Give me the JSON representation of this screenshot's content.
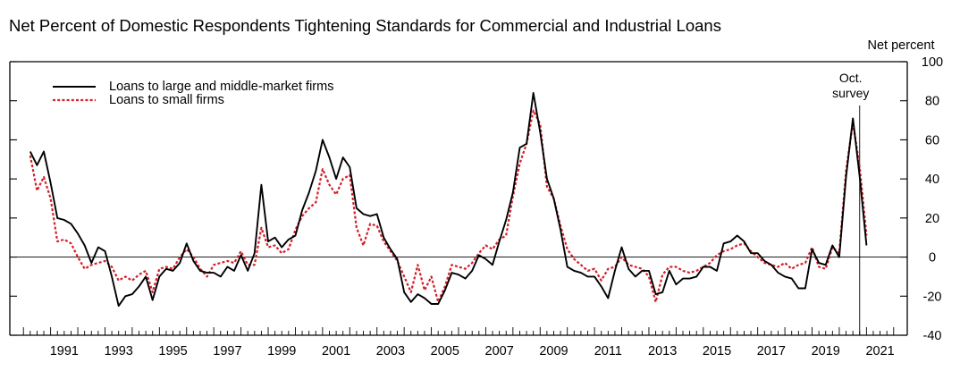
{
  "chart_data": {
    "type": "line",
    "title": "Net Percent of Domestic Respondents Tightening Standards for Commercial and Industrial Loans",
    "ylabel": "Net percent",
    "ylim": [
      -40,
      100
    ],
    "yticks": [
      -40,
      -20,
      0,
      20,
      40,
      60,
      80,
      100
    ],
    "xlim": [
      1989.5,
      2022.5
    ],
    "xticks": [
      1991,
      1993,
      1995,
      1997,
      1999,
      2001,
      2003,
      2005,
      2007,
      2009,
      2011,
      2013,
      2015,
      2017,
      2019,
      2021
    ],
    "xtick_labels": [
      "1991",
      "1993",
      "1995",
      "1997",
      "1999",
      "2001",
      "2003",
      "2005",
      "2007",
      "2009",
      "2011",
      "2013",
      "2015",
      "2017",
      "2019",
      "2021"
    ],
    "legend_position": "top-left",
    "annotation": {
      "text": [
        "Oct.",
        "survey"
      ],
      "x": 2020.75
    },
    "series": [
      {
        "name": "Loans to large and middle-market firms",
        "color": "#000000",
        "style": "solid",
        "points": [
          [
            1990.25,
            54
          ],
          [
            1990.5,
            47
          ],
          [
            1990.75,
            54
          ],
          [
            1991.0,
            38
          ],
          [
            1991.25,
            20
          ],
          [
            1991.5,
            19
          ],
          [
            1991.75,
            17
          ],
          [
            1992.0,
            12
          ],
          [
            1992.25,
            6
          ],
          [
            1992.5,
            -3
          ],
          [
            1992.75,
            5
          ],
          [
            1993.0,
            3
          ],
          [
            1993.25,
            -10
          ],
          [
            1993.5,
            -25
          ],
          [
            1993.75,
            -20
          ],
          [
            1994.0,
            -19
          ],
          [
            1994.25,
            -15
          ],
          [
            1994.5,
            -10
          ],
          [
            1994.75,
            -22
          ],
          [
            1995.0,
            -10
          ],
          [
            1995.25,
            -6
          ],
          [
            1995.5,
            -7
          ],
          [
            1995.75,
            -3
          ],
          [
            1996.0,
            7
          ],
          [
            1996.25,
            -2
          ],
          [
            1996.5,
            -7
          ],
          [
            1996.75,
            -8
          ],
          [
            1997.0,
            -8
          ],
          [
            1997.25,
            -10
          ],
          [
            1997.5,
            -5
          ],
          [
            1997.75,
            -7
          ],
          [
            1998.0,
            1
          ],
          [
            1998.25,
            -7
          ],
          [
            1998.5,
            2
          ],
          [
            1998.75,
            37
          ],
          [
            1999.0,
            8
          ],
          [
            1999.25,
            10
          ],
          [
            1999.5,
            5
          ],
          [
            1999.75,
            9
          ],
          [
            2000.0,
            11
          ],
          [
            2000.25,
            24
          ],
          [
            2000.5,
            33
          ],
          [
            2000.75,
            44
          ],
          [
            2001.0,
            60
          ],
          [
            2001.25,
            51
          ],
          [
            2001.5,
            40
          ],
          [
            2001.75,
            51
          ],
          [
            2002.0,
            46
          ],
          [
            2002.25,
            25
          ],
          [
            2002.5,
            22
          ],
          [
            2002.75,
            21
          ],
          [
            2003.0,
            22
          ],
          [
            2003.25,
            10
          ],
          [
            2003.5,
            4
          ],
          [
            2003.75,
            -1
          ],
          [
            2004.0,
            -18
          ],
          [
            2004.25,
            -23
          ],
          [
            2004.5,
            -19
          ],
          [
            2004.75,
            -21
          ],
          [
            2005.0,
            -24
          ],
          [
            2005.25,
            -24
          ],
          [
            2005.5,
            -17
          ],
          [
            2005.75,
            -8
          ],
          [
            2006.0,
            -9
          ],
          [
            2006.25,
            -11
          ],
          [
            2006.5,
            -7
          ],
          [
            2006.75,
            1
          ],
          [
            2007.0,
            -1
          ],
          [
            2007.25,
            -4
          ],
          [
            2007.5,
            8
          ],
          [
            2007.75,
            19
          ],
          [
            2008.0,
            33
          ],
          [
            2008.25,
            56
          ],
          [
            2008.5,
            58
          ],
          [
            2008.75,
            84
          ],
          [
            2009.0,
            64
          ],
          [
            2009.25,
            40
          ],
          [
            2009.5,
            30
          ],
          [
            2009.75,
            14
          ],
          [
            2010.0,
            -5
          ],
          [
            2010.25,
            -7
          ],
          [
            2010.5,
            -8
          ],
          [
            2010.75,
            -10
          ],
          [
            2011.0,
            -10
          ],
          [
            2011.25,
            -15
          ],
          [
            2011.5,
            -21
          ],
          [
            2011.75,
            -7
          ],
          [
            2012.0,
            5
          ],
          [
            2012.25,
            -6
          ],
          [
            2012.5,
            -10
          ],
          [
            2012.75,
            -7
          ],
          [
            2013.0,
            -7
          ],
          [
            2013.25,
            -19
          ],
          [
            2013.5,
            -18
          ],
          [
            2013.75,
            -7
          ],
          [
            2014.0,
            -14
          ],
          [
            2014.25,
            -11
          ],
          [
            2014.5,
            -11
          ],
          [
            2014.75,
            -10
          ],
          [
            2015.0,
            -5
          ],
          [
            2015.25,
            -5
          ],
          [
            2015.5,
            -7
          ],
          [
            2015.75,
            7
          ],
          [
            2016.0,
            8
          ],
          [
            2016.25,
            11
          ],
          [
            2016.5,
            8
          ],
          [
            2016.75,
            2
          ],
          [
            2017.0,
            2
          ],
          [
            2017.25,
            -2
          ],
          [
            2017.5,
            -4
          ],
          [
            2017.75,
            -8
          ],
          [
            2018.0,
            -10
          ],
          [
            2018.25,
            -11
          ],
          [
            2018.5,
            -16
          ],
          [
            2018.75,
            -16
          ],
          [
            2019.0,
            4
          ],
          [
            2019.25,
            -3
          ],
          [
            2019.5,
            -4
          ],
          [
            2019.75,
            6
          ],
          [
            2020.0,
            0
          ],
          [
            2020.25,
            41
          ],
          [
            2020.5,
            71
          ],
          [
            2020.75,
            41
          ],
          [
            2021.0,
            6
          ]
        ]
      },
      {
        "name": "Loans to small firms",
        "color": "#d3202a",
        "style": "dotted",
        "points": [
          [
            1990.25,
            52
          ],
          [
            1990.5,
            34
          ],
          [
            1990.75,
            41
          ],
          [
            1991.0,
            30
          ],
          [
            1991.25,
            8
          ],
          [
            1991.5,
            9
          ],
          [
            1991.75,
            7
          ],
          [
            1992.0,
            0
          ],
          [
            1992.25,
            -6
          ],
          [
            1992.5,
            -4
          ],
          [
            1992.75,
            -3
          ],
          [
            1993.0,
            -2
          ],
          [
            1993.25,
            -5
          ],
          [
            1993.5,
            -12
          ],
          [
            1993.75,
            -10
          ],
          [
            1994.0,
            -12
          ],
          [
            1994.25,
            -9
          ],
          [
            1994.5,
            -7
          ],
          [
            1994.75,
            -18
          ],
          [
            1995.0,
            -6
          ],
          [
            1995.25,
            -5
          ],
          [
            1995.5,
            -6
          ],
          [
            1995.75,
            0
          ],
          [
            1996.0,
            4
          ],
          [
            1996.25,
            0
          ],
          [
            1996.5,
            -6
          ],
          [
            1996.75,
            -10
          ],
          [
            1997.0,
            -4
          ],
          [
            1997.25,
            -3
          ],
          [
            1997.5,
            -2
          ],
          [
            1997.75,
            -3
          ],
          [
            1998.0,
            3
          ],
          [
            1998.25,
            -4
          ],
          [
            1998.5,
            -4
          ],
          [
            1998.75,
            15
          ],
          [
            1999.0,
            5
          ],
          [
            1999.25,
            6
          ],
          [
            1999.5,
            2
          ],
          [
            1999.75,
            4
          ],
          [
            2000.0,
            14
          ],
          [
            2000.25,
            21
          ],
          [
            2000.5,
            25
          ],
          [
            2000.75,
            28
          ],
          [
            2001.0,
            45
          ],
          [
            2001.25,
            37
          ],
          [
            2001.5,
            32
          ],
          [
            2001.75,
            40
          ],
          [
            2002.0,
            42
          ],
          [
            2002.25,
            15
          ],
          [
            2002.5,
            6
          ],
          [
            2002.75,
            17
          ],
          [
            2003.0,
            16
          ],
          [
            2003.25,
            8
          ],
          [
            2003.5,
            3
          ],
          [
            2003.75,
            -2
          ],
          [
            2004.0,
            -10
          ],
          [
            2004.25,
            -18
          ],
          [
            2004.5,
            -4
          ],
          [
            2004.75,
            -17
          ],
          [
            2005.0,
            -10
          ],
          [
            2005.25,
            -23
          ],
          [
            2005.5,
            -15
          ],
          [
            2005.75,
            -4
          ],
          [
            2006.0,
            -5
          ],
          [
            2006.25,
            -6
          ],
          [
            2006.5,
            -3
          ],
          [
            2006.75,
            2
          ],
          [
            2007.0,
            6
          ],
          [
            2007.25,
            4
          ],
          [
            2007.5,
            9
          ],
          [
            2007.75,
            11
          ],
          [
            2008.0,
            31
          ],
          [
            2008.25,
            48
          ],
          [
            2008.5,
            58
          ],
          [
            2008.75,
            75
          ],
          [
            2009.0,
            68
          ],
          [
            2009.25,
            36
          ],
          [
            2009.5,
            30
          ],
          [
            2009.75,
            16
          ],
          [
            2010.0,
            4
          ],
          [
            2010.25,
            -1
          ],
          [
            2010.5,
            -4
          ],
          [
            2010.75,
            -7
          ],
          [
            2011.0,
            -6
          ],
          [
            2011.25,
            -12
          ],
          [
            2011.5,
            -6
          ],
          [
            2011.75,
            -5
          ],
          [
            2012.0,
            0
          ],
          [
            2012.25,
            -4
          ],
          [
            2012.5,
            -5
          ],
          [
            2012.75,
            -6
          ],
          [
            2013.0,
            -10
          ],
          [
            2013.25,
            -23
          ],
          [
            2013.5,
            -9
          ],
          [
            2013.75,
            -5
          ],
          [
            2014.0,
            -5
          ],
          [
            2014.25,
            -7
          ],
          [
            2014.5,
            -8
          ],
          [
            2014.75,
            -7
          ],
          [
            2015.0,
            -5
          ],
          [
            2015.25,
            -3
          ],
          [
            2015.5,
            1
          ],
          [
            2015.75,
            3
          ],
          [
            2016.0,
            4
          ],
          [
            2016.25,
            6
          ],
          [
            2016.5,
            7
          ],
          [
            2016.75,
            3
          ],
          [
            2017.0,
            0
          ],
          [
            2017.25,
            -3
          ],
          [
            2017.5,
            -4
          ],
          [
            2017.75,
            -5
          ],
          [
            2018.0,
            -3
          ],
          [
            2018.25,
            -6
          ],
          [
            2018.5,
            -4
          ],
          [
            2018.75,
            -3
          ],
          [
            2019.0,
            5
          ],
          [
            2019.25,
            -5
          ],
          [
            2019.5,
            -6
          ],
          [
            2019.75,
            5
          ],
          [
            2020.0,
            2
          ],
          [
            2020.25,
            44
          ],
          [
            2020.5,
            69
          ],
          [
            2020.75,
            46
          ],
          [
            2021.0,
            11
          ]
        ]
      }
    ]
  }
}
